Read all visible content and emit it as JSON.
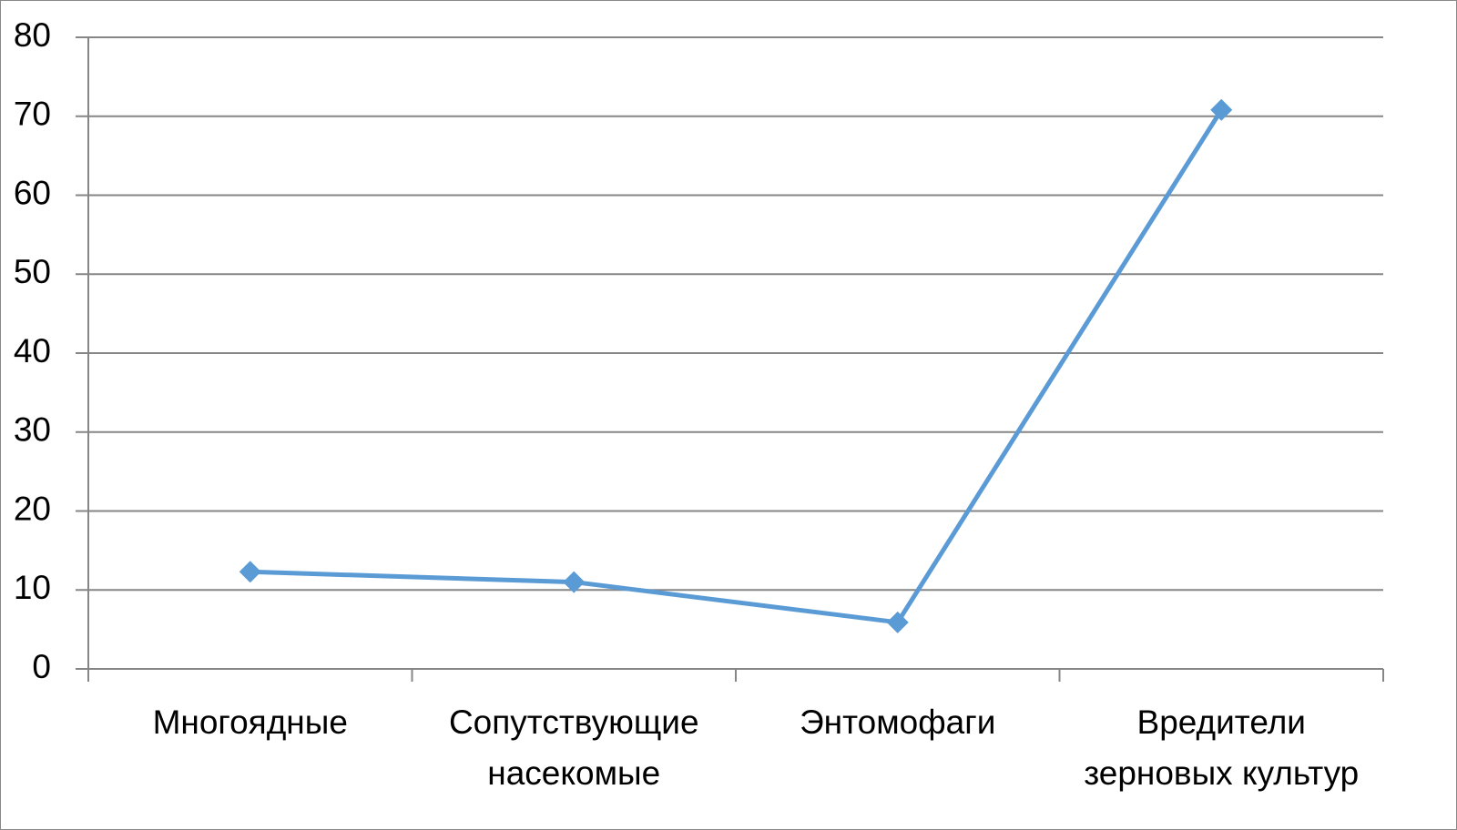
{
  "chart_data": {
    "type": "line",
    "categories": [
      "Многоядные",
      "Сопутствующие насекомые",
      "Энтомофаги",
      "Вредители зерновых культур"
    ],
    "series": [
      {
        "color": "#5b9bd5",
        "values": [
          12.3,
          11,
          5.9,
          70.8
        ]
      }
    ],
    "ylim": [
      0,
      80
    ],
    "yticks": [
      0,
      10,
      20,
      30,
      40,
      50,
      60,
      70,
      80
    ],
    "grid": true
  }
}
